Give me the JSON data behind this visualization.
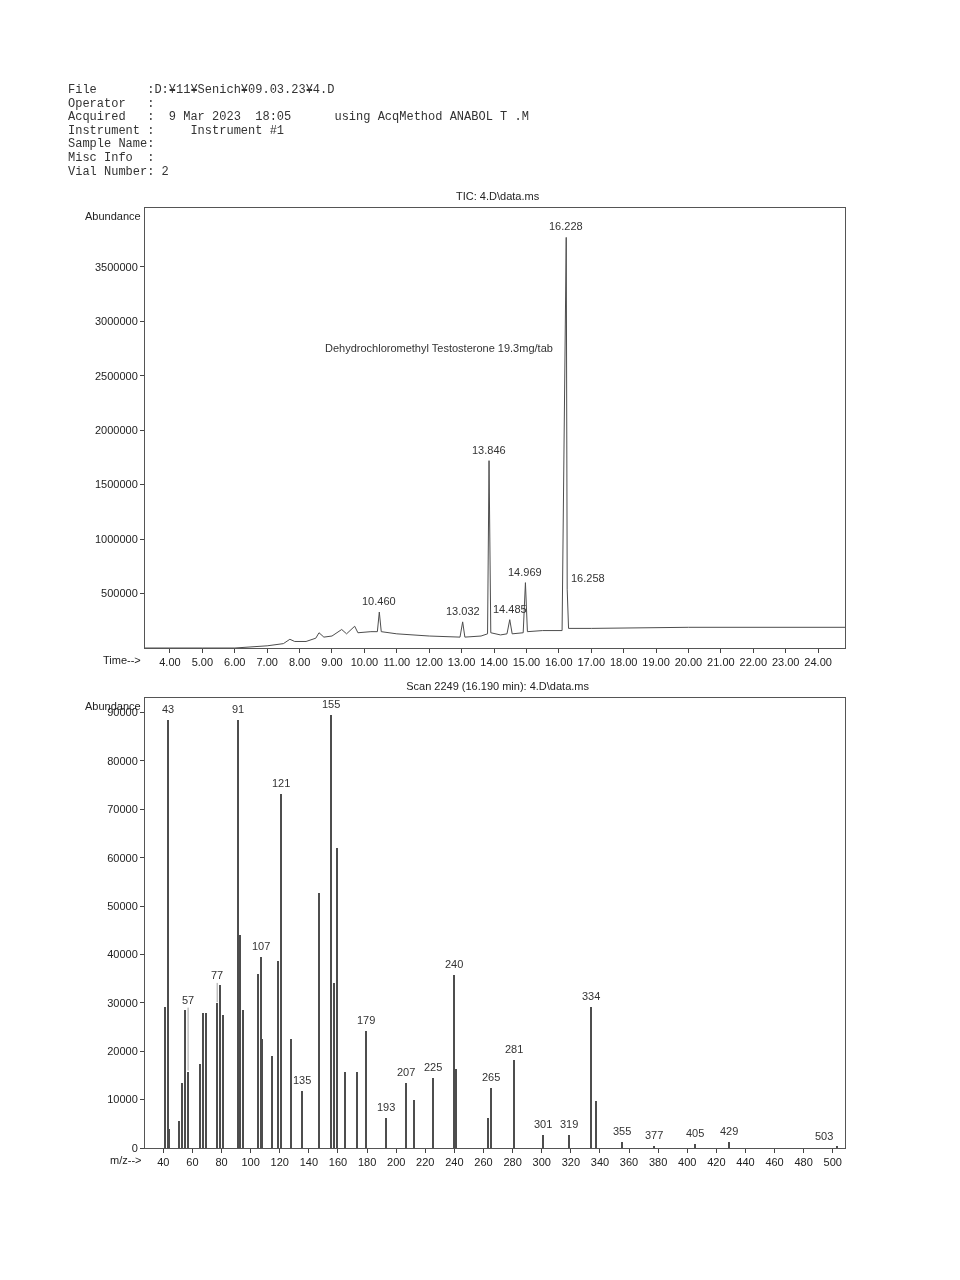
{
  "chart_data": [
    {
      "type": "line",
      "title": "TIC: 4.D\\data.ms",
      "subtitle": "File       :D:¥11¥Senich¥09.03.23¥4.D\nOperator   :\nAcquired   :  9 Mar 2023  18:05      using AcqMethod ANABOL T .M\nInstrument :     Instrument #1\nSample Name:\nMisc Info  :\nVial Number: 2",
      "xlabel": "Time-->",
      "ylabel": "Abundance",
      "color": "#4d4d4d",
      "marker": "none",
      "line_style": "solid",
      "x": [
        3.23,
        5.0,
        6.0,
        6.5,
        7.0,
        7.5,
        7.7,
        7.85,
        8.2,
        8.5,
        8.6,
        8.75,
        9.0,
        9.3,
        9.45,
        9.7,
        9.8,
        10.2,
        10.4,
        10.46,
        10.52,
        11.0,
        12.0,
        12.95,
        13.032,
        13.1,
        13.6,
        13.8,
        13.846,
        13.9,
        14.2,
        14.4,
        14.485,
        14.56,
        14.9,
        14.969,
        15.03,
        15.5,
        16.1,
        16.228,
        16.258,
        16.3,
        17.0,
        20.0,
        24.83
      ],
      "values": [
        0,
        0,
        0,
        10000,
        20000,
        40000,
        80000,
        60000,
        60000,
        90000,
        140000,
        100000,
        110000,
        170000,
        130000,
        200000,
        140000,
        150000,
        150000,
        330000,
        150000,
        130000,
        110000,
        100000,
        240000,
        100000,
        110000,
        130000,
        1720000,
        140000,
        120000,
        130000,
        260000,
        130000,
        140000,
        600000,
        150000,
        160000,
        160000,
        3770000,
        540000,
        180000,
        180000,
        190000,
        190000
      ],
      "xlim": [
        3.23,
        24.83
      ],
      "ylim": [
        0,
        4040000
      ],
      "xticks": [
        {
          "value": 4,
          "label": "4.00"
        },
        {
          "value": 5,
          "label": "5.00"
        },
        {
          "value": 6,
          "label": "6.00"
        },
        {
          "value": 7,
          "label": "7.00"
        },
        {
          "value": 8,
          "label": "8.00"
        },
        {
          "value": 9,
          "label": "9.00"
        },
        {
          "value": 10,
          "label": "10.00"
        },
        {
          "value": 11,
          "label": "11.00"
        },
        {
          "value": 12,
          "label": "12.00"
        },
        {
          "value": 13,
          "label": "13.00"
        },
        {
          "value": 14,
          "label": "14.00"
        },
        {
          "value": 15,
          "label": "15.00"
        },
        {
          "value": 16,
          "label": "16.00"
        },
        {
          "value": 17,
          "label": "17.00"
        },
        {
          "value": 18,
          "label": "18.00"
        },
        {
          "value": 19,
          "label": "19.00"
        },
        {
          "value": 20,
          "label": "20.00"
        },
        {
          "value": 21,
          "label": "21.00"
        },
        {
          "value": 22,
          "label": "22.00"
        },
        {
          "value": 23,
          "label": "23.00"
        },
        {
          "value": 24,
          "label": "24.00"
        }
      ],
      "yticks": [
        500000,
        1000000,
        1500000,
        2000000,
        2500000,
        3000000,
        3500000
      ],
      "annotations": [
        "Dehydrochloromethyl Testosterone 19.3mg/tab",
        {
          "text": "10.460",
          "x": 10.46,
          "y": 330000
        },
        {
          "text": "13.032",
          "x": 13.032,
          "y": 240000
        },
        {
          "text": "13.846",
          "x": 13.846,
          "y": 1720000
        },
        {
          "text": "14.485",
          "x": 14.485,
          "y": 260000
        },
        {
          "text": "14.969",
          "x": 14.969,
          "y": 600000
        },
        {
          "text": "16.228",
          "x": 16.228,
          "y": 3770000
        },
        {
          "text": "16.258",
          "x": 16.258,
          "y": 540000
        }
      ]
    },
    {
      "type": "bar",
      "title": "Scan 2249 (16.190 min): 4.D\\data.ms",
      "xlabel": "m/z-->",
      "ylabel": "Abundance",
      "color": "#4d4d4d",
      "x": [
        41,
        43,
        44,
        51,
        53,
        55,
        57,
        65,
        67,
        69,
        77,
        79,
        81,
        91,
        93,
        95,
        105,
        107,
        108,
        115,
        119,
        121,
        128,
        135,
        147,
        155,
        157,
        159,
        165,
        173,
        179,
        193,
        207,
        212,
        225,
        240,
        241,
        263,
        265,
        280,
        281,
        301,
        319,
        334,
        337,
        355,
        377,
        405,
        429,
        503
      ],
      "values": [
        29200,
        88500,
        3900,
        5600,
        13400,
        28500,
        15800,
        17400,
        27900,
        27900,
        29900,
        33600,
        27500,
        88500,
        44000,
        28500,
        36000,
        39400,
        22600,
        19000,
        38700,
        73100,
        22600,
        11700,
        52800,
        89500,
        34200,
        61900,
        15800,
        15800,
        24100,
        6300,
        13400,
        10000,
        14400,
        35700,
        16400,
        6300,
        12500,
        null,
        18100,
        2600,
        2600,
        29200,
        9700,
        1200,
        400,
        800,
        1200,
        300
      ],
      "xlim": [
        27.4,
        508.4
      ],
      "ylim": [
        0,
        93000
      ],
      "xticks": [
        40,
        60,
        80,
        100,
        120,
        140,
        160,
        180,
        200,
        220,
        240,
        260,
        280,
        300,
        320,
        340,
        360,
        380,
        400,
        420,
        440,
        460,
        480,
        500
      ],
      "yticks": [
        0,
        10000,
        20000,
        30000,
        40000,
        50000,
        60000,
        70000,
        80000,
        90000
      ],
      "annotations": [
        {
          "text": "43",
          "x": 43,
          "y": 88500
        },
        {
          "text": "57",
          "x": 57,
          "y": 15800
        },
        {
          "text": "77",
          "x": 77,
          "y": 29900
        },
        {
          "text": "91",
          "x": 91,
          "y": 88500
        },
        {
          "text": "107",
          "x": 107,
          "y": 39400
        },
        {
          "text": "121",
          "x": 121,
          "y": 73100
        },
        {
          "text": "135",
          "x": 135,
          "y": 11700
        },
        {
          "text": "155",
          "x": 155,
          "y": 89500
        },
        {
          "text": "179",
          "x": 179,
          "y": 24100
        },
        {
          "text": "193",
          "x": 193,
          "y": 6300
        },
        {
          "text": "207",
          "x": 207,
          "y": 13400
        },
        {
          "text": "225",
          "x": 225,
          "y": 14400
        },
        {
          "text": "240",
          "x": 240,
          "y": 35700
        },
        {
          "text": "265",
          "x": 265,
          "y": 12500
        },
        {
          "text": "281",
          "x": 281,
          "y": 18100
        },
        {
          "text": "301",
          "x": 301,
          "y": 2600
        },
        {
          "text": "319",
          "x": 319,
          "y": 2600
        },
        {
          "text": "334",
          "x": 334,
          "y": 29200
        },
        {
          "text": "355",
          "x": 355,
          "y": 1200
        },
        {
          "text": "377",
          "x": 377,
          "y": 400
        },
        {
          "text": "405",
          "x": 405,
          "y": 800
        },
        {
          "text": "429",
          "x": 429,
          "y": 1200
        },
        {
          "text": "503",
          "x": 503,
          "y": 300
        }
      ]
    }
  ]
}
